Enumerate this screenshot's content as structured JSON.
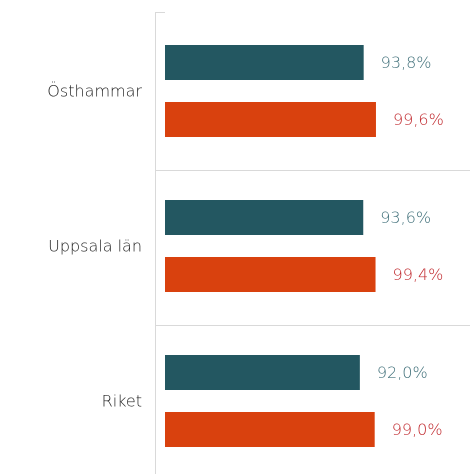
{
  "chart_data": {
    "type": "bar",
    "orientation": "horizontal",
    "categories": [
      "Östhammar",
      "Uppsala län",
      "Riket"
    ],
    "series": [
      {
        "color": "#235761",
        "label_color": "#3f6f79",
        "values": [
          93.8,
          93.6,
          92.0
        ],
        "value_labels": [
          "93,8%",
          "93,6%",
          "92,0%"
        ]
      },
      {
        "color": "#d9410e",
        "label_color": "#c0282d",
        "values": [
          99.6,
          99.4,
          99.0
        ],
        "value_labels": [
          "99,6%",
          "99,4%",
          "99,0%"
        ]
      }
    ],
    "xlim": [
      0,
      144
    ]
  }
}
